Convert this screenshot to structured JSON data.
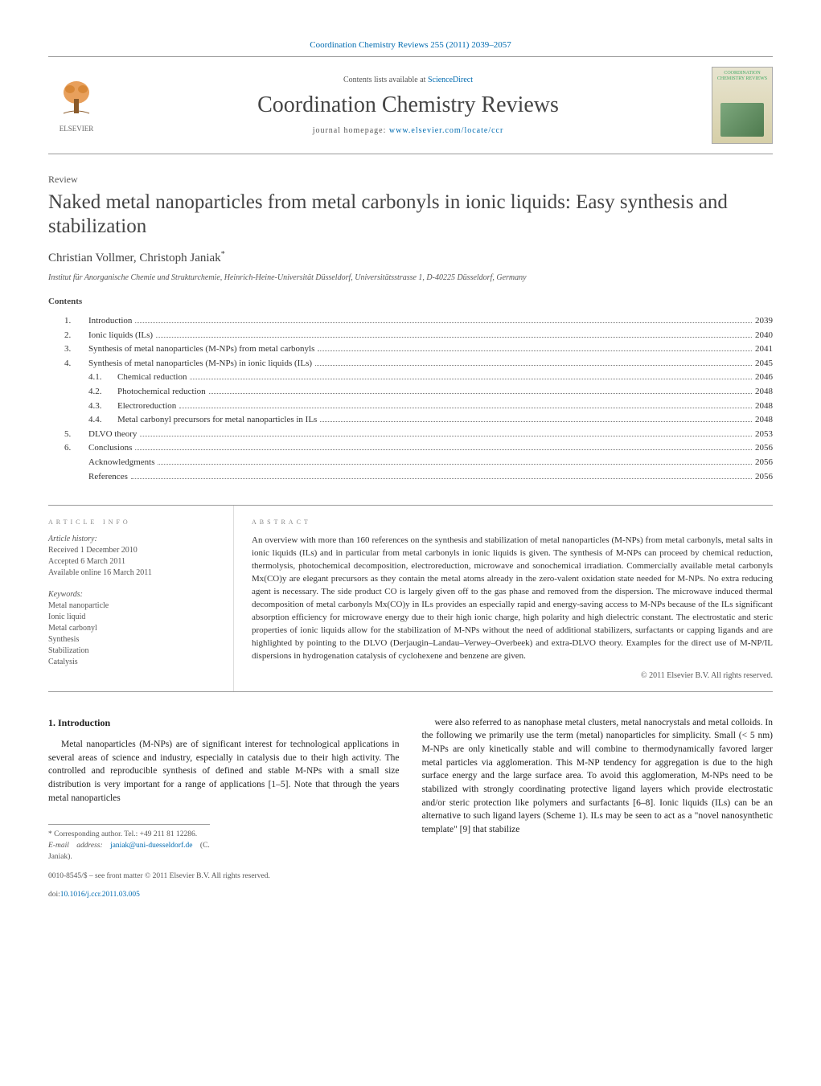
{
  "header": {
    "citation": "Coordination Chemistry Reviews 255 (2011) 2039–2057",
    "contents_available": "Contents lists available at",
    "sciencedirect": "ScienceDirect",
    "journal_title": "Coordination Chemistry Reviews",
    "homepage_label": "journal homepage:",
    "homepage_url": "www.elsevier.com/locate/ccr",
    "publisher": "ELSEVIER",
    "cover_small_title": "COORDINATION CHEMISTRY REVIEWS"
  },
  "article": {
    "type": "Review",
    "title": "Naked metal nanoparticles from metal carbonyls in ionic liquids: Easy synthesis and stabilization",
    "authors": "Christian Vollmer, Christoph Janiak",
    "corr_marker": "*",
    "affiliation": "Institut für Anorganische Chemie und Strukturchemie, Heinrich-Heine-Universität Düsseldorf, Universitätsstrasse 1, D-40225 Düsseldorf, Germany"
  },
  "contents_heading": "Contents",
  "toc": [
    {
      "num": "1.",
      "label": "Introduction",
      "page": "2039"
    },
    {
      "num": "2.",
      "label": "Ionic liquids (ILs)",
      "page": "2040"
    },
    {
      "num": "3.",
      "label": "Synthesis of metal nanoparticles (M-NPs) from metal carbonyls",
      "page": "2041"
    },
    {
      "num": "4.",
      "label": "Synthesis of metal nanoparticles (M-NPs) in ionic liquids (ILs)",
      "page": "2045"
    },
    {
      "num": "",
      "sub": true,
      "subnum": "4.1.",
      "label": "Chemical reduction",
      "page": "2046"
    },
    {
      "num": "",
      "sub": true,
      "subnum": "4.2.",
      "label": "Photochemical reduction",
      "page": "2048"
    },
    {
      "num": "",
      "sub": true,
      "subnum": "4.3.",
      "label": "Electroreduction",
      "page": "2048"
    },
    {
      "num": "",
      "sub": true,
      "subnum": "4.4.",
      "label": "Metal carbonyl precursors for metal nanoparticles in ILs",
      "page": "2048"
    },
    {
      "num": "5.",
      "label": "DLVO theory",
      "page": "2053"
    },
    {
      "num": "6.",
      "label": "Conclusions",
      "page": "2056"
    },
    {
      "num": "",
      "label": "Acknowledgments",
      "page": "2056"
    },
    {
      "num": "",
      "label": "References",
      "page": "2056"
    }
  ],
  "info": {
    "heading": "article info",
    "history_heading": "Article history:",
    "received": "Received 1 December 2010",
    "accepted": "Accepted 6 March 2011",
    "online": "Available online 16 March 2011",
    "keywords_heading": "Keywords:",
    "keywords": [
      "Metal nanoparticle",
      "Ionic liquid",
      "Metal carbonyl",
      "Synthesis",
      "Stabilization",
      "Catalysis"
    ]
  },
  "abstract": {
    "heading": "abstract",
    "text": "An overview with more than 160 references on the synthesis and stabilization of metal nanoparticles (M-NPs) from metal carbonyls, metal salts in ionic liquids (ILs) and in particular from metal carbonyls in ionic liquids is given. The synthesis of M-NPs can proceed by chemical reduction, thermolysis, photochemical decomposition, electroreduction, microwave and sonochemical irradiation. Commercially available metal carbonyls Mx(CO)y are elegant precursors as they contain the metal atoms already in the zero-valent oxidation state needed for M-NPs. No extra reducing agent is necessary. The side product CO is largely given off to the gas phase and removed from the dispersion. The microwave induced thermal decomposition of metal carbonyls Mx(CO)y in ILs provides an especially rapid and energy-saving access to M-NPs because of the ILs significant absorption efficiency for microwave energy due to their high ionic charge, high polarity and high dielectric constant. The electrostatic and steric properties of ionic liquids allow for the stabilization of M-NPs without the need of additional stabilizers, surfactants or capping ligands and are highlighted by pointing to the DLVO (Derjaugin–Landau–Verwey–Overbeek) and extra-DLVO theory. Examples for the direct use of M-NP/IL dispersions in hydrogenation catalysis of cyclohexene and benzene are given.",
    "copyright": "© 2011 Elsevier B.V. All rights reserved."
  },
  "body": {
    "sec1_heading": "1. Introduction",
    "col1_p1": "Metal nanoparticles (M-NPs) are of significant interest for technological applications in several areas of science and industry, especially in catalysis due to their high activity. The controlled and reproducible synthesis of defined and stable M-NPs with a small size distribution is very important for a range of applications [1–5]. Note that through the years metal nanoparticles",
    "col2_p1": "were also referred to as nanophase metal clusters, metal nanocrystals and metal colloids. In the following we primarily use the term (metal) nanoparticles for simplicity. Small (< 5 nm) M-NPs are only kinetically stable and will combine to thermodynamically favored larger metal particles via agglomeration. This M-NP tendency for aggregation is due to the high surface energy and the large surface area. To avoid this agglomeration, M-NPs need to be stabilized with strongly coordinating protective ligand layers which provide electrostatic and/or steric protection like polymers and surfactants [6–8]. Ionic liquids (ILs) can be an alternative to such ligand layers (Scheme 1). ILs may be seen to act as a \"novel nanosynthetic template\" [9] that stabilize"
  },
  "footnotes": {
    "corr": "* Corresponding author. Tel.: +49 211 81 12286.",
    "email_label": "E-mail address:",
    "email": "janiak@uni-duesseldorf.de",
    "email_who": "(C. Janiak).",
    "issn": "0010-8545/$ – see front matter © 2011 Elsevier B.V. All rights reserved.",
    "doi_label": "doi:",
    "doi": "10.1016/j.ccr.2011.03.005"
  },
  "colors": {
    "link": "#006bb0",
    "text": "#333333",
    "border": "#999999"
  }
}
